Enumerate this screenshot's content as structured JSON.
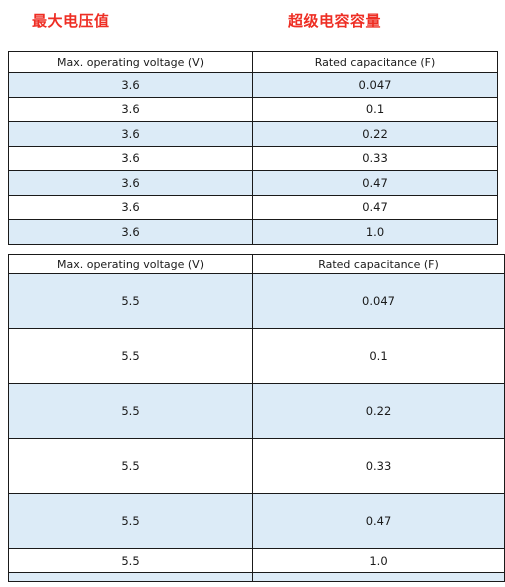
{
  "headings": {
    "left": "最大电压值",
    "right": "超级电容容量"
  },
  "table1": {
    "header": {
      "voltage": "Max. operating voltage (V)",
      "capacitance": "Rated capacitance (F)"
    },
    "rows": [
      {
        "voltage": "3.6",
        "capacitance": "0.047"
      },
      {
        "voltage": "3.6",
        "capacitance": "0.1"
      },
      {
        "voltage": "3.6",
        "capacitance": "0.22"
      },
      {
        "voltage": "3.6",
        "capacitance": "0.33"
      },
      {
        "voltage": "3.6",
        "capacitance": "0.47"
      },
      {
        "voltage": "3.6",
        "capacitance": "0.47"
      },
      {
        "voltage": "3.6",
        "capacitance": "1.0"
      }
    ]
  },
  "table2": {
    "header": {
      "voltage": "Max. operating voltage (V)",
      "capacitance": "Rated capacitance (F)"
    },
    "rows": [
      {
        "voltage": "5.5",
        "capacitance": "0.047"
      },
      {
        "voltage": "5.5",
        "capacitance": "0.1"
      },
      {
        "voltage": "5.5",
        "capacitance": "0.22"
      },
      {
        "voltage": "5.5",
        "capacitance": "0.33"
      },
      {
        "voltage": "5.5",
        "capacitance": "0.47"
      },
      {
        "voltage": "5.5",
        "capacitance": "1.0"
      }
    ]
  }
}
